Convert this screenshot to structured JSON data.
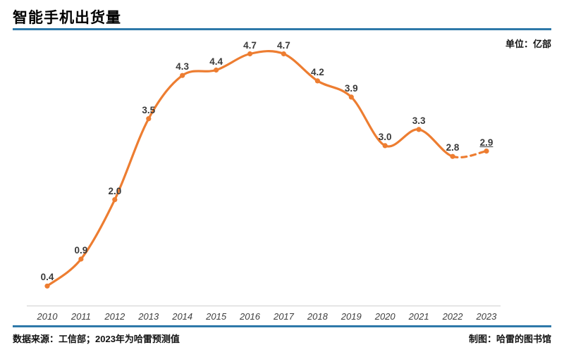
{
  "header": {
    "title": "智能手机出货量",
    "unit": "单位：亿部"
  },
  "footer": {
    "source": "数据来源：工信部；2023年为哈雷预测值",
    "credit": "制图：哈雷的图书馆"
  },
  "colors": {
    "accent_blue": "#2e79a9",
    "line_orange": "#ed7d31",
    "axis_gray": "#dcdcdc",
    "label_gray": "#3a3a3a"
  },
  "chart_data": {
    "type": "line",
    "title": "智能手机出货量",
    "unit": "亿部",
    "categories": [
      "2010",
      "2011",
      "2012",
      "2013",
      "2014",
      "2015",
      "2016",
      "2017",
      "2018",
      "2019",
      "2020",
      "2021",
      "2022",
      "2023"
    ],
    "values": [
      0.4,
      0.9,
      2.0,
      3.5,
      4.3,
      4.4,
      4.7,
      4.7,
      4.2,
      3.9,
      3.0,
      3.3,
      2.8,
      2.9
    ],
    "data_labels": [
      "0.4",
      "0.9",
      "2.0",
      "3.5",
      "4.3",
      "4.4",
      "4.7",
      "4.7",
      "4.2",
      "3.9",
      "3.0",
      "3.3",
      "2.8",
      "2.9"
    ],
    "dashed_from_index": 12,
    "underlined_label_index": 13,
    "smooth": true,
    "markers": true,
    "grid": false,
    "legend": "none",
    "y_axis_visible": false,
    "xlabel": "",
    "ylabel": "",
    "ylim": [
      0,
      5
    ],
    "note": "2023 value is a forecast (dashed segment, underlined label)"
  }
}
